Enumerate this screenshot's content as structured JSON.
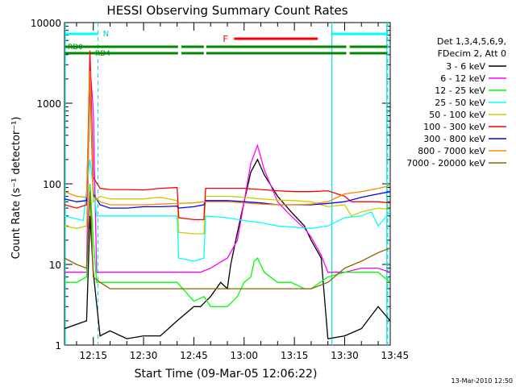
{
  "chart_data": {
    "type": "line",
    "title": "HESSI Observing Summary Count Rates",
    "xlabel": "Start Time (09-Mar-05 12:06:22)",
    "ylabel": "Count Rate (s⁻¹ detector⁻¹)",
    "y_scale": "log",
    "ylim": [
      1,
      10000
    ],
    "xlim_minutes": [
      6.4,
      103.6
    ],
    "x_ticks": [
      {
        "label": "12:15",
        "min": 15
      },
      {
        "label": "12:30",
        "min": 30
      },
      {
        "label": "12:45",
        "min": 45
      },
      {
        "label": "13:00",
        "min": 60
      },
      {
        "label": "13:15",
        "min": 75
      },
      {
        "label": "13:30",
        "min": 90
      },
      {
        "label": "13:45",
        "min": 105
      }
    ],
    "y_ticks": [
      {
        "label": "1",
        "v": 1
      },
      {
        "label": "10",
        "v": 10
      },
      {
        "label": "100",
        "v": 100
      },
      {
        "label": "1000",
        "v": 1000
      },
      {
        "label": "10000",
        "v": 10000
      }
    ],
    "legend_header": [
      "Det 1,3,4,5,6,9,",
      "FDecim 2, Att 0"
    ],
    "legend_position": "right",
    "series": [
      {
        "name": "3 - 6 keV",
        "color": "#000000",
        "points": [
          [
            6.4,
            1.6
          ],
          [
            13,
            2
          ],
          [
            14,
            40
          ],
          [
            15,
            8
          ],
          [
            17,
            1.3
          ],
          [
            20,
            1.5
          ],
          [
            25,
            1.2
          ],
          [
            30,
            1.3
          ],
          [
            35,
            1.3
          ],
          [
            40,
            2
          ],
          [
            45,
            3
          ],
          [
            47,
            3
          ],
          [
            50,
            4
          ],
          [
            53,
            6
          ],
          [
            55,
            5
          ],
          [
            56,
            10
          ],
          [
            58,
            25
          ],
          [
            60,
            60
          ],
          [
            62,
            140
          ],
          [
            64,
            200
          ],
          [
            66,
            130
          ],
          [
            70,
            70
          ],
          [
            74,
            45
          ],
          [
            78,
            30
          ],
          [
            80,
            20
          ],
          [
            83,
            12
          ],
          [
            85,
            1.2
          ],
          [
            90,
            1.3
          ],
          [
            95,
            1.6
          ],
          [
            100,
            3
          ],
          [
            103.6,
            2
          ]
        ]
      },
      {
        "name": "6 - 12 keV",
        "color": "#ff00ff",
        "points": [
          [
            6.4,
            8
          ],
          [
            10,
            8
          ],
          [
            13,
            8
          ],
          [
            14,
            3000
          ],
          [
            15,
            800
          ],
          [
            16,
            8
          ],
          [
            20,
            8
          ],
          [
            30,
            8
          ],
          [
            40,
            8
          ],
          [
            47,
            8
          ],
          [
            50,
            9
          ],
          [
            55,
            12
          ],
          [
            58,
            20
          ],
          [
            60,
            60
          ],
          [
            62,
            180
          ],
          [
            64,
            300
          ],
          [
            66,
            150
          ],
          [
            70,
            60
          ],
          [
            74,
            40
          ],
          [
            78,
            28
          ],
          [
            80,
            22
          ],
          [
            83,
            13
          ],
          [
            85,
            8
          ],
          [
            90,
            8
          ],
          [
            95,
            9
          ],
          [
            100,
            9
          ],
          [
            103.6,
            8
          ]
        ]
      },
      {
        "name": "12 - 25 keV",
        "color": "#00ff00",
        "points": [
          [
            6.4,
            6
          ],
          [
            10,
            6
          ],
          [
            13,
            7
          ],
          [
            14,
            100
          ],
          [
            15,
            20
          ],
          [
            16,
            6
          ],
          [
            20,
            6
          ],
          [
            30,
            6
          ],
          [
            40,
            6
          ],
          [
            45,
            3.5
          ],
          [
            48,
            4
          ],
          [
            50,
            3
          ],
          [
            55,
            3
          ],
          [
            58,
            4
          ],
          [
            60,
            6
          ],
          [
            62,
            7
          ],
          [
            63,
            11
          ],
          [
            64,
            12
          ],
          [
            66,
            8
          ],
          [
            70,
            6
          ],
          [
            74,
            6
          ],
          [
            78,
            5
          ],
          [
            80,
            5
          ],
          [
            85,
            7
          ],
          [
            90,
            8
          ],
          [
            95,
            8
          ],
          [
            100,
            8
          ],
          [
            103.6,
            6
          ]
        ]
      },
      {
        "name": "25 - 50 keV",
        "color": "#00ffff",
        "points": [
          [
            6.4,
            40
          ],
          [
            12,
            35
          ],
          [
            14,
            200
          ],
          [
            16,
            40
          ],
          [
            20,
            40
          ],
          [
            25,
            40
          ],
          [
            30,
            40
          ],
          [
            35,
            40
          ],
          [
            40,
            40
          ],
          [
            40.5,
            12
          ],
          [
            45,
            11
          ],
          [
            48,
            12
          ],
          [
            48.5,
            40
          ],
          [
            55,
            38
          ],
          [
            60,
            35
          ],
          [
            65,
            33
          ],
          [
            70,
            30
          ],
          [
            75,
            29
          ],
          [
            80,
            28
          ],
          [
            85,
            30
          ],
          [
            90,
            38
          ],
          [
            95,
            40
          ],
          [
            98,
            45
          ],
          [
            100,
            30
          ],
          [
            103.6,
            45
          ]
        ]
      },
      {
        "name": "50 - 100 keV",
        "color": "#cccc00",
        "points": [
          [
            6.4,
            30
          ],
          [
            10,
            28
          ],
          [
            13,
            30
          ],
          [
            14,
            1500
          ],
          [
            15,
            60
          ],
          [
            17,
            70
          ],
          [
            20,
            65
          ],
          [
            25,
            65
          ],
          [
            30,
            65
          ],
          [
            35,
            68
          ],
          [
            40,
            62
          ],
          [
            40.5,
            25
          ],
          [
            45,
            24
          ],
          [
            48,
            24
          ],
          [
            48.5,
            70
          ],
          [
            55,
            70
          ],
          [
            60,
            68
          ],
          [
            65,
            65
          ],
          [
            70,
            63
          ],
          [
            75,
            62
          ],
          [
            80,
            60
          ],
          [
            85,
            52
          ],
          [
            90,
            55
          ],
          [
            92,
            40
          ],
          [
            95,
            45
          ],
          [
            100,
            50
          ],
          [
            103.6,
            48
          ]
        ]
      },
      {
        "name": "100 - 300 keV",
        "color": "#ff0000",
        "points": [
          [
            6.4,
            55
          ],
          [
            10,
            50
          ],
          [
            13,
            55
          ],
          [
            14,
            4500
          ],
          [
            15,
            120
          ],
          [
            17,
            88
          ],
          [
            20,
            85
          ],
          [
            25,
            85
          ],
          [
            30,
            84
          ],
          [
            35,
            88
          ],
          [
            40,
            90
          ],
          [
            40.5,
            38
          ],
          [
            45,
            36
          ],
          [
            48,
            36
          ],
          [
            48.5,
            88
          ],
          [
            55,
            88
          ],
          [
            60,
            88
          ],
          [
            65,
            85
          ],
          [
            70,
            82
          ],
          [
            75,
            80
          ],
          [
            80,
            80
          ],
          [
            85,
            82
          ],
          [
            90,
            70
          ],
          [
            92,
            60
          ],
          [
            95,
            60
          ],
          [
            100,
            60
          ],
          [
            103.6,
            58
          ]
        ]
      },
      {
        "name": "300 - 800 keV",
        "color": "#0000ff",
        "points": [
          [
            6.4,
            65
          ],
          [
            10,
            60
          ],
          [
            13,
            62
          ],
          [
            14,
            2000
          ],
          [
            15,
            75
          ],
          [
            17,
            55
          ],
          [
            20,
            50
          ],
          [
            25,
            50
          ],
          [
            30,
            52
          ],
          [
            35,
            52
          ],
          [
            40,
            53
          ],
          [
            40.5,
            50
          ],
          [
            45,
            52
          ],
          [
            48,
            55
          ],
          [
            48.5,
            62
          ],
          [
            55,
            62
          ],
          [
            60,
            60
          ],
          [
            65,
            58
          ],
          [
            70,
            55
          ],
          [
            75,
            55
          ],
          [
            80,
            55
          ],
          [
            85,
            57
          ],
          [
            90,
            60
          ],
          [
            95,
            68
          ],
          [
            100,
            75
          ],
          [
            103.6,
            80
          ]
        ]
      },
      {
        "name": "800 - 7000 keV",
        "color": "#ff8800",
        "points": [
          [
            6.4,
            80
          ],
          [
            10,
            70
          ],
          [
            13,
            68
          ],
          [
            14,
            2500
          ],
          [
            15,
            70
          ],
          [
            17,
            60
          ],
          [
            20,
            55
          ],
          [
            25,
            55
          ],
          [
            30,
            55
          ],
          [
            35,
            56
          ],
          [
            40,
            57
          ],
          [
            45,
            58
          ],
          [
            48,
            60
          ],
          [
            55,
            60
          ],
          [
            60,
            58
          ],
          [
            65,
            56
          ],
          [
            70,
            55
          ],
          [
            75,
            55
          ],
          [
            80,
            56
          ],
          [
            85,
            60
          ],
          [
            90,
            75
          ],
          [
            95,
            80
          ],
          [
            100,
            88
          ],
          [
            103.6,
            95
          ]
        ]
      },
      {
        "name": "7000 - 20000 keV",
        "color": "#886600",
        "points": [
          [
            6.4,
            12
          ],
          [
            10,
            10
          ],
          [
            13,
            9
          ],
          [
            14,
            80
          ],
          [
            15,
            7
          ],
          [
            17,
            6
          ],
          [
            20,
            5
          ],
          [
            25,
            5
          ],
          [
            30,
            5
          ],
          [
            35,
            5
          ],
          [
            40,
            5
          ],
          [
            45,
            5
          ],
          [
            48,
            5
          ],
          [
            55,
            5
          ],
          [
            60,
            5
          ],
          [
            65,
            5
          ],
          [
            70,
            5
          ],
          [
            75,
            5
          ],
          [
            80,
            5
          ],
          [
            85,
            6
          ],
          [
            90,
            9
          ],
          [
            95,
            11
          ],
          [
            100,
            14
          ],
          [
            103.6,
            16
          ]
        ]
      }
    ],
    "annotations": {
      "vlines_solid": [
        6.6,
        86.2,
        102.6
      ],
      "vlines_dashed": [
        16.4,
        102.9
      ],
      "n_label": "N",
      "n_segments": [
        [
          6.6,
          16.4
        ],
        [
          86.2,
          102.9
        ]
      ],
      "f_label": "F",
      "f_segment": [
        57,
        82
      ],
      "rd0_label": "RD0",
      "rd4_label": "RD4",
      "green_segments_upper": [
        [
          6.6,
          40.3
        ],
        [
          41.3,
          48.0
        ],
        [
          48.7,
          90.5
        ],
        [
          91.5,
          102.6
        ]
      ],
      "green_segments_lower": [
        [
          6.6,
          40.3
        ],
        [
          41.3,
          48.0
        ],
        [
          48.7,
          90.5
        ],
        [
          91.5,
          102.6
        ]
      ]
    },
    "grid": false
  },
  "footer_date": "13-Mar-2010 12:50"
}
